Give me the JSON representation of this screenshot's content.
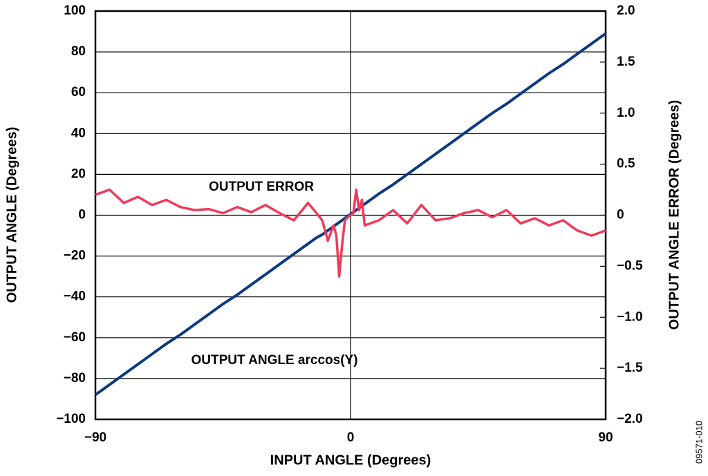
{
  "chart_data": {
    "type": "line",
    "x_label": "INPUT ANGLE (Degrees)",
    "y_label": "OUTPUT ANGLE (Degrees)",
    "y2_label": "OUTPUT ANGLE ERROR (Degrees)",
    "figure_id": "09571-010",
    "annotations": [
      "OUTPUT ERROR",
      "OUTPUT ANGLE arccos(Y)"
    ],
    "xlim": [
      -90,
      90
    ],
    "xticks": [
      {
        "value": -90,
        "label": "−90"
      },
      0,
      90
    ],
    "ylim": [
      -100,
      100
    ],
    "yticks": [
      {
        "value": -100,
        "label": "−100"
      },
      {
        "value": -80,
        "label": "−80"
      },
      {
        "value": -60,
        "label": "−60"
      },
      {
        "value": -40,
        "label": "−40"
      },
      {
        "value": -20,
        "label": "−20"
      },
      0,
      20,
      40,
      60,
      80,
      100
    ],
    "y2lim": [
      -2,
      2
    ],
    "y2ticks": [
      {
        "value": -2,
        "label": "−2.0"
      },
      {
        "value": -1.5,
        "label": "−1.5"
      },
      {
        "value": -1,
        "label": "−1.0"
      },
      {
        "value": -0.5,
        "label": "−0.5"
      },
      0,
      0.5,
      {
        "value": 1,
        "label": "1.0"
      },
      1.5,
      {
        "value": 2,
        "label": "2.0"
      }
    ],
    "grid": true,
    "x": [
      -90,
      -85,
      -80,
      -75,
      -70,
      -65,
      -60,
      -55,
      -50,
      -45,
      -40,
      -35,
      -30,
      -25,
      -20,
      -15,
      -12,
      -10,
      -8,
      -6,
      -5,
      -4,
      -3,
      -2,
      -1,
      0,
      1,
      2,
      3,
      4,
      5,
      10,
      15,
      20,
      25,
      30,
      35,
      40,
      45,
      50,
      55,
      60,
      65,
      70,
      75,
      80,
      85,
      90
    ],
    "series": [
      {
        "color": "#0d3a80",
        "values": [
          -88,
          -83,
          -78,
          -73,
          -68,
          -63,
          -58.5,
          -53.5,
          -48.5,
          -43.5,
          -39,
          -34,
          -29,
          -24,
          -19,
          -14,
          -11,
          -9.5,
          -7.5,
          -5.5,
          -4.5,
          -3.5,
          -2.5,
          -1.5,
          -0.5,
          0.5,
          1.5,
          2.5,
          3.5,
          4.5,
          5.5,
          10.5,
          15,
          20,
          25,
          30,
          35,
          40,
          45,
          50,
          54.5,
          59.5,
          64.5,
          69.5,
          74,
          79,
          84,
          89
        ]
      },
      {
        "color": "#f03a5a",
        "axis": "y2",
        "values": [
          0.2,
          0.25,
          0.12,
          0.18,
          0.1,
          0.15,
          0.08,
          0.05,
          0.06,
          0.02,
          0.08,
          0.03,
          0.1,
          0.02,
          -0.05,
          0.12,
          0.02,
          -0.05,
          -0.25,
          -0.1,
          -0.2,
          -0.6,
          -0.3,
          -0.05,
          -0.02,
          0,
          0.02,
          0.25,
          0.05,
          0.15,
          -0.1,
          -0.05,
          0.05,
          -0.08,
          0.1,
          -0.05,
          -0.03,
          0.02,
          0.05,
          -0.02,
          0.05,
          -0.08,
          -0.03,
          -0.1,
          -0.05,
          -0.15,
          -0.2,
          -0.15
        ]
      }
    ]
  }
}
